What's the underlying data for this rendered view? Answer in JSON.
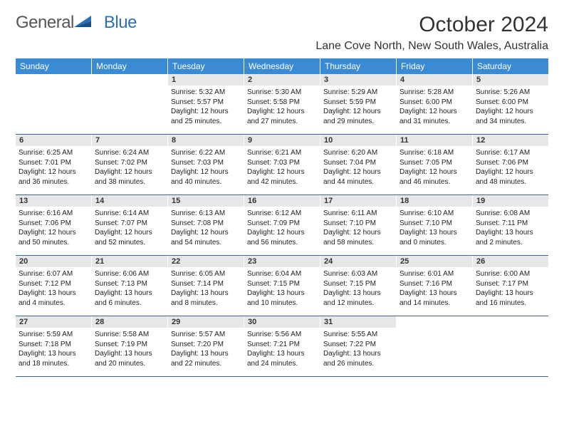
{
  "brand": {
    "part1": "General",
    "part2": "Blue"
  },
  "title": "October 2024",
  "location": "Lane Cove North, New South Wales, Australia",
  "weekdays": [
    "Sunday",
    "Monday",
    "Tuesday",
    "Wednesday",
    "Thursday",
    "Friday",
    "Saturday"
  ],
  "colors": {
    "header_bg": "#3b8bd4",
    "header_text": "#ffffff",
    "daynum_bg": "#e7e7e7",
    "row_border": "#3b6a9c",
    "brand_gray": "#555555",
    "brand_blue": "#2b6fb5"
  },
  "weeks": [
    [
      {
        "blank": true
      },
      {
        "blank": true
      },
      {
        "day": "1",
        "sunrise": "5:32 AM",
        "sunset": "5:57 PM",
        "daylight": "12 hours and 25 minutes."
      },
      {
        "day": "2",
        "sunrise": "5:30 AM",
        "sunset": "5:58 PM",
        "daylight": "12 hours and 27 minutes."
      },
      {
        "day": "3",
        "sunrise": "5:29 AM",
        "sunset": "5:59 PM",
        "daylight": "12 hours and 29 minutes."
      },
      {
        "day": "4",
        "sunrise": "5:28 AM",
        "sunset": "6:00 PM",
        "daylight": "12 hours and 31 minutes."
      },
      {
        "day": "5",
        "sunrise": "5:26 AM",
        "sunset": "6:00 PM",
        "daylight": "12 hours and 34 minutes."
      }
    ],
    [
      {
        "day": "6",
        "sunrise": "6:25 AM",
        "sunset": "7:01 PM",
        "daylight": "12 hours and 36 minutes."
      },
      {
        "day": "7",
        "sunrise": "6:24 AM",
        "sunset": "7:02 PM",
        "daylight": "12 hours and 38 minutes."
      },
      {
        "day": "8",
        "sunrise": "6:22 AM",
        "sunset": "7:03 PM",
        "daylight": "12 hours and 40 minutes."
      },
      {
        "day": "9",
        "sunrise": "6:21 AM",
        "sunset": "7:03 PM",
        "daylight": "12 hours and 42 minutes."
      },
      {
        "day": "10",
        "sunrise": "6:20 AM",
        "sunset": "7:04 PM",
        "daylight": "12 hours and 44 minutes."
      },
      {
        "day": "11",
        "sunrise": "6:18 AM",
        "sunset": "7:05 PM",
        "daylight": "12 hours and 46 minutes."
      },
      {
        "day": "12",
        "sunrise": "6:17 AM",
        "sunset": "7:06 PM",
        "daylight": "12 hours and 48 minutes."
      }
    ],
    [
      {
        "day": "13",
        "sunrise": "6:16 AM",
        "sunset": "7:06 PM",
        "daylight": "12 hours and 50 minutes."
      },
      {
        "day": "14",
        "sunrise": "6:14 AM",
        "sunset": "7:07 PM",
        "daylight": "12 hours and 52 minutes."
      },
      {
        "day": "15",
        "sunrise": "6:13 AM",
        "sunset": "7:08 PM",
        "daylight": "12 hours and 54 minutes."
      },
      {
        "day": "16",
        "sunrise": "6:12 AM",
        "sunset": "7:09 PM",
        "daylight": "12 hours and 56 minutes."
      },
      {
        "day": "17",
        "sunrise": "6:11 AM",
        "sunset": "7:10 PM",
        "daylight": "12 hours and 58 minutes."
      },
      {
        "day": "18",
        "sunrise": "6:10 AM",
        "sunset": "7:10 PM",
        "daylight": "13 hours and 0 minutes."
      },
      {
        "day": "19",
        "sunrise": "6:08 AM",
        "sunset": "7:11 PM",
        "daylight": "13 hours and 2 minutes."
      }
    ],
    [
      {
        "day": "20",
        "sunrise": "6:07 AM",
        "sunset": "7:12 PM",
        "daylight": "13 hours and 4 minutes."
      },
      {
        "day": "21",
        "sunrise": "6:06 AM",
        "sunset": "7:13 PM",
        "daylight": "13 hours and 6 minutes."
      },
      {
        "day": "22",
        "sunrise": "6:05 AM",
        "sunset": "7:14 PM",
        "daylight": "13 hours and 8 minutes."
      },
      {
        "day": "23",
        "sunrise": "6:04 AM",
        "sunset": "7:15 PM",
        "daylight": "13 hours and 10 minutes."
      },
      {
        "day": "24",
        "sunrise": "6:03 AM",
        "sunset": "7:15 PM",
        "daylight": "13 hours and 12 minutes."
      },
      {
        "day": "25",
        "sunrise": "6:01 AM",
        "sunset": "7:16 PM",
        "daylight": "13 hours and 14 minutes."
      },
      {
        "day": "26",
        "sunrise": "6:00 AM",
        "sunset": "7:17 PM",
        "daylight": "13 hours and 16 minutes."
      }
    ],
    [
      {
        "day": "27",
        "sunrise": "5:59 AM",
        "sunset": "7:18 PM",
        "daylight": "13 hours and 18 minutes."
      },
      {
        "day": "28",
        "sunrise": "5:58 AM",
        "sunset": "7:19 PM",
        "daylight": "13 hours and 20 minutes."
      },
      {
        "day": "29",
        "sunrise": "5:57 AM",
        "sunset": "7:20 PM",
        "daylight": "13 hours and 22 minutes."
      },
      {
        "day": "30",
        "sunrise": "5:56 AM",
        "sunset": "7:21 PM",
        "daylight": "13 hours and 24 minutes."
      },
      {
        "day": "31",
        "sunrise": "5:55 AM",
        "sunset": "7:22 PM",
        "daylight": "13 hours and 26 minutes."
      },
      {
        "blank": true
      },
      {
        "blank": true
      }
    ]
  ]
}
